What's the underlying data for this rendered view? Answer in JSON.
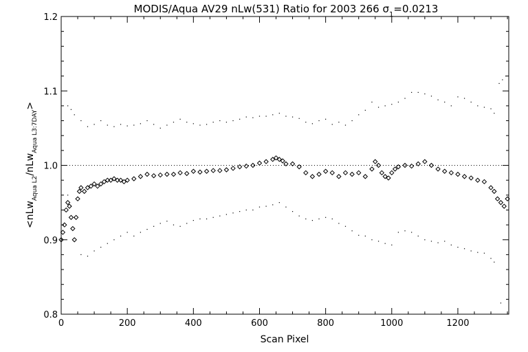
{
  "chart_data": {
    "type": "scatter",
    "title_main": "MODIS/Aqua AV29 nLw(531) Ratio for 2003 266 ",
    "title_sigma": "σ",
    "title_sigma_sub": "1",
    "title_value": "=0.0213",
    "xlabel": "Scan Pixel",
    "ylabel_parts": {
      "prefix": "<nLw",
      "sub1": "Aqua L2",
      "mid": "/nLw",
      "sub2": "Aqua L3:7DAY",
      "suffix": ">"
    },
    "xlim": [
      0,
      1354
    ],
    "ylim": [
      0.8,
      1.2
    ],
    "xticks": [
      0,
      200,
      400,
      600,
      800,
      1000,
      1200
    ],
    "yticks": [
      0.8,
      0.9,
      1.0,
      1.1,
      1.2
    ],
    "xtick_labels": [
      "0",
      "200",
      "400",
      "600",
      "800",
      "1000",
      "1200"
    ],
    "ytick_labels": [
      "0.8",
      "0.9",
      "1.0",
      "1.1",
      "1.2"
    ],
    "reference_line": 1.0,
    "grid": false,
    "series": [
      {
        "marker": "diamond",
        "x": [
          0,
          5,
          10,
          15,
          20,
          25,
          30,
          35,
          40,
          45,
          50,
          55,
          60,
          70,
          80,
          90,
          100,
          110,
          120,
          130,
          140,
          150,
          160,
          170,
          180,
          190,
          200,
          220,
          240,
          260,
          280,
          300,
          320,
          340,
          360,
          380,
          400,
          420,
          440,
          460,
          480,
          500,
          520,
          540,
          560,
          580,
          600,
          620,
          640,
          650,
          660,
          670,
          680,
          700,
          720,
          740,
          760,
          780,
          800,
          820,
          840,
          860,
          880,
          900,
          920,
          940,
          950,
          960,
          970,
          980,
          990,
          1000,
          1010,
          1020,
          1040,
          1060,
          1080,
          1100,
          1120,
          1140,
          1160,
          1180,
          1200,
          1220,
          1240,
          1260,
          1280,
          1300,
          1310,
          1320,
          1330,
          1340,
          1350
        ],
        "y": [
          0.9,
          0.91,
          0.92,
          0.94,
          0.95,
          0.945,
          0.93,
          0.915,
          0.9,
          0.93,
          0.955,
          0.965,
          0.97,
          0.965,
          0.97,
          0.972,
          0.975,
          0.972,
          0.975,
          0.978,
          0.98,
          0.98,
          0.982,
          0.98,
          0.98,
          0.978,
          0.98,
          0.982,
          0.985,
          0.988,
          0.986,
          0.987,
          0.988,
          0.988,
          0.99,
          0.989,
          0.992,
          0.991,
          0.992,
          0.993,
          0.993,
          0.994,
          0.996,
          0.998,
          0.999,
          1.0,
          1.003,
          1.005,
          1.008,
          1.01,
          1.008,
          1.006,
          1.002,
          1.002,
          0.998,
          0.99,
          0.985,
          0.988,
          0.992,
          0.99,
          0.985,
          0.99,
          0.988,
          0.99,
          0.985,
          0.995,
          1.005,
          1.0,
          0.99,
          0.985,
          0.983,
          0.99,
          0.995,
          0.998,
          1.0,
          0.999,
          1.002,
          1.005,
          1.0,
          0.995,
          0.992,
          0.99,
          0.988,
          0.985,
          0.983,
          0.98,
          0.978,
          0.97,
          0.965,
          0.955,
          0.95,
          0.945,
          0.955
        ]
      },
      {
        "marker": "dot",
        "x": [
          20,
          30,
          40,
          60,
          80,
          100,
          120,
          140,
          160,
          180,
          200,
          220,
          240,
          260,
          280,
          300,
          320,
          340,
          360,
          380,
          400,
          420,
          440,
          460,
          480,
          500,
          520,
          540,
          560,
          580,
          600,
          620,
          640,
          660,
          680,
          700,
          720,
          740,
          760,
          780,
          800,
          820,
          840,
          860,
          880,
          900,
          920,
          940,
          960,
          980,
          1000,
          1020,
          1040,
          1060,
          1080,
          1100,
          1120,
          1140,
          1160,
          1180,
          1200,
          1220,
          1240,
          1260,
          1280,
          1300,
          1310
        ],
        "y": [
          1.08,
          1.075,
          1.068,
          1.06,
          1.052,
          1.055,
          1.06,
          1.054,
          1.052,
          1.055,
          1.053,
          1.054,
          1.056,
          1.06,
          1.055,
          1.05,
          1.054,
          1.058,
          1.062,
          1.058,
          1.056,
          1.054,
          1.055,
          1.058,
          1.06,
          1.058,
          1.06,
          1.062,
          1.065,
          1.064,
          1.066,
          1.066,
          1.068,
          1.07,
          1.066,
          1.065,
          1.063,
          1.058,
          1.056,
          1.06,
          1.062,
          1.055,
          1.058,
          1.054,
          1.06,
          1.068,
          1.074,
          1.085,
          1.078,
          1.08,
          1.082,
          1.085,
          1.09,
          1.098,
          1.098,
          1.096,
          1.093,
          1.088,
          1.085,
          1.08,
          1.092,
          1.09,
          1.085,
          1.08,
          1.078,
          1.076,
          1.07
        ]
      },
      {
        "marker": "dot",
        "x": [
          20,
          30,
          40,
          60,
          80,
          100,
          120,
          140,
          160,
          180,
          200,
          220,
          240,
          260,
          280,
          300,
          320,
          340,
          360,
          380,
          400,
          420,
          440,
          460,
          480,
          500,
          520,
          540,
          560,
          580,
          600,
          620,
          640,
          660,
          680,
          700,
          720,
          740,
          760,
          780,
          800,
          820,
          840,
          860,
          880,
          900,
          920,
          940,
          960,
          980,
          1000,
          1020,
          1040,
          1060,
          1080,
          1100,
          1120,
          1140,
          1160,
          1180,
          1200,
          1220,
          1240,
          1260,
          1280,
          1300,
          1310
        ],
        "y": [
          0.96,
          0.945,
          0.93,
          0.88,
          0.878,
          0.885,
          0.89,
          0.895,
          0.9,
          0.905,
          0.91,
          0.905,
          0.91,
          0.914,
          0.918,
          0.922,
          0.925,
          0.92,
          0.918,
          0.922,
          0.926,
          0.928,
          0.928,
          0.93,
          0.932,
          0.934,
          0.936,
          0.938,
          0.94,
          0.94,
          0.944,
          0.945,
          0.947,
          0.95,
          0.944,
          0.938,
          0.932,
          0.928,
          0.926,
          0.928,
          0.93,
          0.928,
          0.922,
          0.918,
          0.912,
          0.906,
          0.905,
          0.9,
          0.898,
          0.895,
          0.893,
          0.91,
          0.912,
          0.91,
          0.905,
          0.9,
          0.898,
          0.896,
          0.898,
          0.893,
          0.89,
          0.888,
          0.885,
          0.883,
          0.882,
          0.875,
          0.87
        ]
      }
    ],
    "outliers": {
      "marker": "dot",
      "x": [
        1325,
        1335,
        1345,
        1330
      ],
      "y": [
        1.11,
        1.115,
        1.12,
        0.815
      ]
    }
  }
}
